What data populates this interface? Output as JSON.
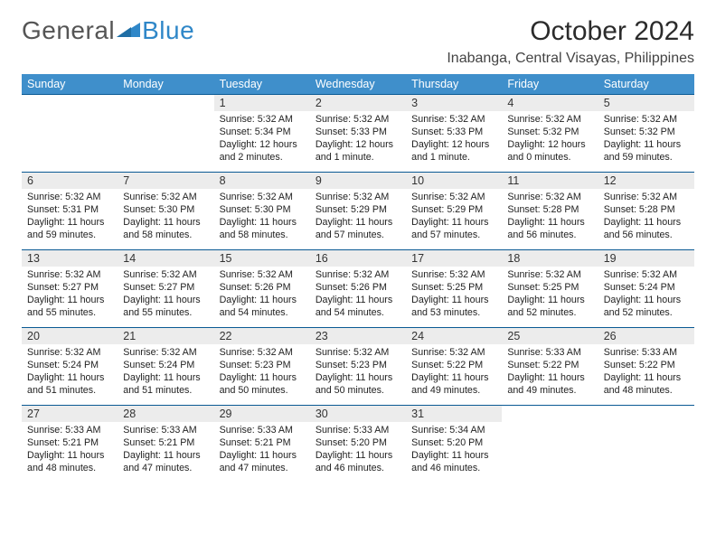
{
  "brand": {
    "part1": "General",
    "part2": "Blue"
  },
  "title": "October 2024",
  "location": "Inabanga, Central Visayas, Philippines",
  "colors": {
    "header_bg": "#3f8fcb",
    "header_text": "#ffffff",
    "daynum_bg": "#ececec",
    "rule": "#0a5a94",
    "logo_accent": "#2f87c8"
  },
  "day_headers": [
    "Sunday",
    "Monday",
    "Tuesday",
    "Wednesday",
    "Thursday",
    "Friday",
    "Saturday"
  ],
  "weeks": [
    [
      {
        "n": "",
        "lines": []
      },
      {
        "n": "",
        "lines": []
      },
      {
        "n": "1",
        "lines": [
          "Sunrise: 5:32 AM",
          "Sunset: 5:34 PM",
          "Daylight: 12 hours",
          "and 2 minutes."
        ]
      },
      {
        "n": "2",
        "lines": [
          "Sunrise: 5:32 AM",
          "Sunset: 5:33 PM",
          "Daylight: 12 hours",
          "and 1 minute."
        ]
      },
      {
        "n": "3",
        "lines": [
          "Sunrise: 5:32 AM",
          "Sunset: 5:33 PM",
          "Daylight: 12 hours",
          "and 1 minute."
        ]
      },
      {
        "n": "4",
        "lines": [
          "Sunrise: 5:32 AM",
          "Sunset: 5:32 PM",
          "Daylight: 12 hours",
          "and 0 minutes."
        ]
      },
      {
        "n": "5",
        "lines": [
          "Sunrise: 5:32 AM",
          "Sunset: 5:32 PM",
          "Daylight: 11 hours",
          "and 59 minutes."
        ]
      }
    ],
    [
      {
        "n": "6",
        "lines": [
          "Sunrise: 5:32 AM",
          "Sunset: 5:31 PM",
          "Daylight: 11 hours",
          "and 59 minutes."
        ]
      },
      {
        "n": "7",
        "lines": [
          "Sunrise: 5:32 AM",
          "Sunset: 5:30 PM",
          "Daylight: 11 hours",
          "and 58 minutes."
        ]
      },
      {
        "n": "8",
        "lines": [
          "Sunrise: 5:32 AM",
          "Sunset: 5:30 PM",
          "Daylight: 11 hours",
          "and 58 minutes."
        ]
      },
      {
        "n": "9",
        "lines": [
          "Sunrise: 5:32 AM",
          "Sunset: 5:29 PM",
          "Daylight: 11 hours",
          "and 57 minutes."
        ]
      },
      {
        "n": "10",
        "lines": [
          "Sunrise: 5:32 AM",
          "Sunset: 5:29 PM",
          "Daylight: 11 hours",
          "and 57 minutes."
        ]
      },
      {
        "n": "11",
        "lines": [
          "Sunrise: 5:32 AM",
          "Sunset: 5:28 PM",
          "Daylight: 11 hours",
          "and 56 minutes."
        ]
      },
      {
        "n": "12",
        "lines": [
          "Sunrise: 5:32 AM",
          "Sunset: 5:28 PM",
          "Daylight: 11 hours",
          "and 56 minutes."
        ]
      }
    ],
    [
      {
        "n": "13",
        "lines": [
          "Sunrise: 5:32 AM",
          "Sunset: 5:27 PM",
          "Daylight: 11 hours",
          "and 55 minutes."
        ]
      },
      {
        "n": "14",
        "lines": [
          "Sunrise: 5:32 AM",
          "Sunset: 5:27 PM",
          "Daylight: 11 hours",
          "and 55 minutes."
        ]
      },
      {
        "n": "15",
        "lines": [
          "Sunrise: 5:32 AM",
          "Sunset: 5:26 PM",
          "Daylight: 11 hours",
          "and 54 minutes."
        ]
      },
      {
        "n": "16",
        "lines": [
          "Sunrise: 5:32 AM",
          "Sunset: 5:26 PM",
          "Daylight: 11 hours",
          "and 54 minutes."
        ]
      },
      {
        "n": "17",
        "lines": [
          "Sunrise: 5:32 AM",
          "Sunset: 5:25 PM",
          "Daylight: 11 hours",
          "and 53 minutes."
        ]
      },
      {
        "n": "18",
        "lines": [
          "Sunrise: 5:32 AM",
          "Sunset: 5:25 PM",
          "Daylight: 11 hours",
          "and 52 minutes."
        ]
      },
      {
        "n": "19",
        "lines": [
          "Sunrise: 5:32 AM",
          "Sunset: 5:24 PM",
          "Daylight: 11 hours",
          "and 52 minutes."
        ]
      }
    ],
    [
      {
        "n": "20",
        "lines": [
          "Sunrise: 5:32 AM",
          "Sunset: 5:24 PM",
          "Daylight: 11 hours",
          "and 51 minutes."
        ]
      },
      {
        "n": "21",
        "lines": [
          "Sunrise: 5:32 AM",
          "Sunset: 5:24 PM",
          "Daylight: 11 hours",
          "and 51 minutes."
        ]
      },
      {
        "n": "22",
        "lines": [
          "Sunrise: 5:32 AM",
          "Sunset: 5:23 PM",
          "Daylight: 11 hours",
          "and 50 minutes."
        ]
      },
      {
        "n": "23",
        "lines": [
          "Sunrise: 5:32 AM",
          "Sunset: 5:23 PM",
          "Daylight: 11 hours",
          "and 50 minutes."
        ]
      },
      {
        "n": "24",
        "lines": [
          "Sunrise: 5:32 AM",
          "Sunset: 5:22 PM",
          "Daylight: 11 hours",
          "and 49 minutes."
        ]
      },
      {
        "n": "25",
        "lines": [
          "Sunrise: 5:33 AM",
          "Sunset: 5:22 PM",
          "Daylight: 11 hours",
          "and 49 minutes."
        ]
      },
      {
        "n": "26",
        "lines": [
          "Sunrise: 5:33 AM",
          "Sunset: 5:22 PM",
          "Daylight: 11 hours",
          "and 48 minutes."
        ]
      }
    ],
    [
      {
        "n": "27",
        "lines": [
          "Sunrise: 5:33 AM",
          "Sunset: 5:21 PM",
          "Daylight: 11 hours",
          "and 48 minutes."
        ]
      },
      {
        "n": "28",
        "lines": [
          "Sunrise: 5:33 AM",
          "Sunset: 5:21 PM",
          "Daylight: 11 hours",
          "and 47 minutes."
        ]
      },
      {
        "n": "29",
        "lines": [
          "Sunrise: 5:33 AM",
          "Sunset: 5:21 PM",
          "Daylight: 11 hours",
          "and 47 minutes."
        ]
      },
      {
        "n": "30",
        "lines": [
          "Sunrise: 5:33 AM",
          "Sunset: 5:20 PM",
          "Daylight: 11 hours",
          "and 46 minutes."
        ]
      },
      {
        "n": "31",
        "lines": [
          "Sunrise: 5:34 AM",
          "Sunset: 5:20 PM",
          "Daylight: 11 hours",
          "and 46 minutes."
        ]
      },
      {
        "n": "",
        "lines": []
      },
      {
        "n": "",
        "lines": []
      }
    ]
  ]
}
